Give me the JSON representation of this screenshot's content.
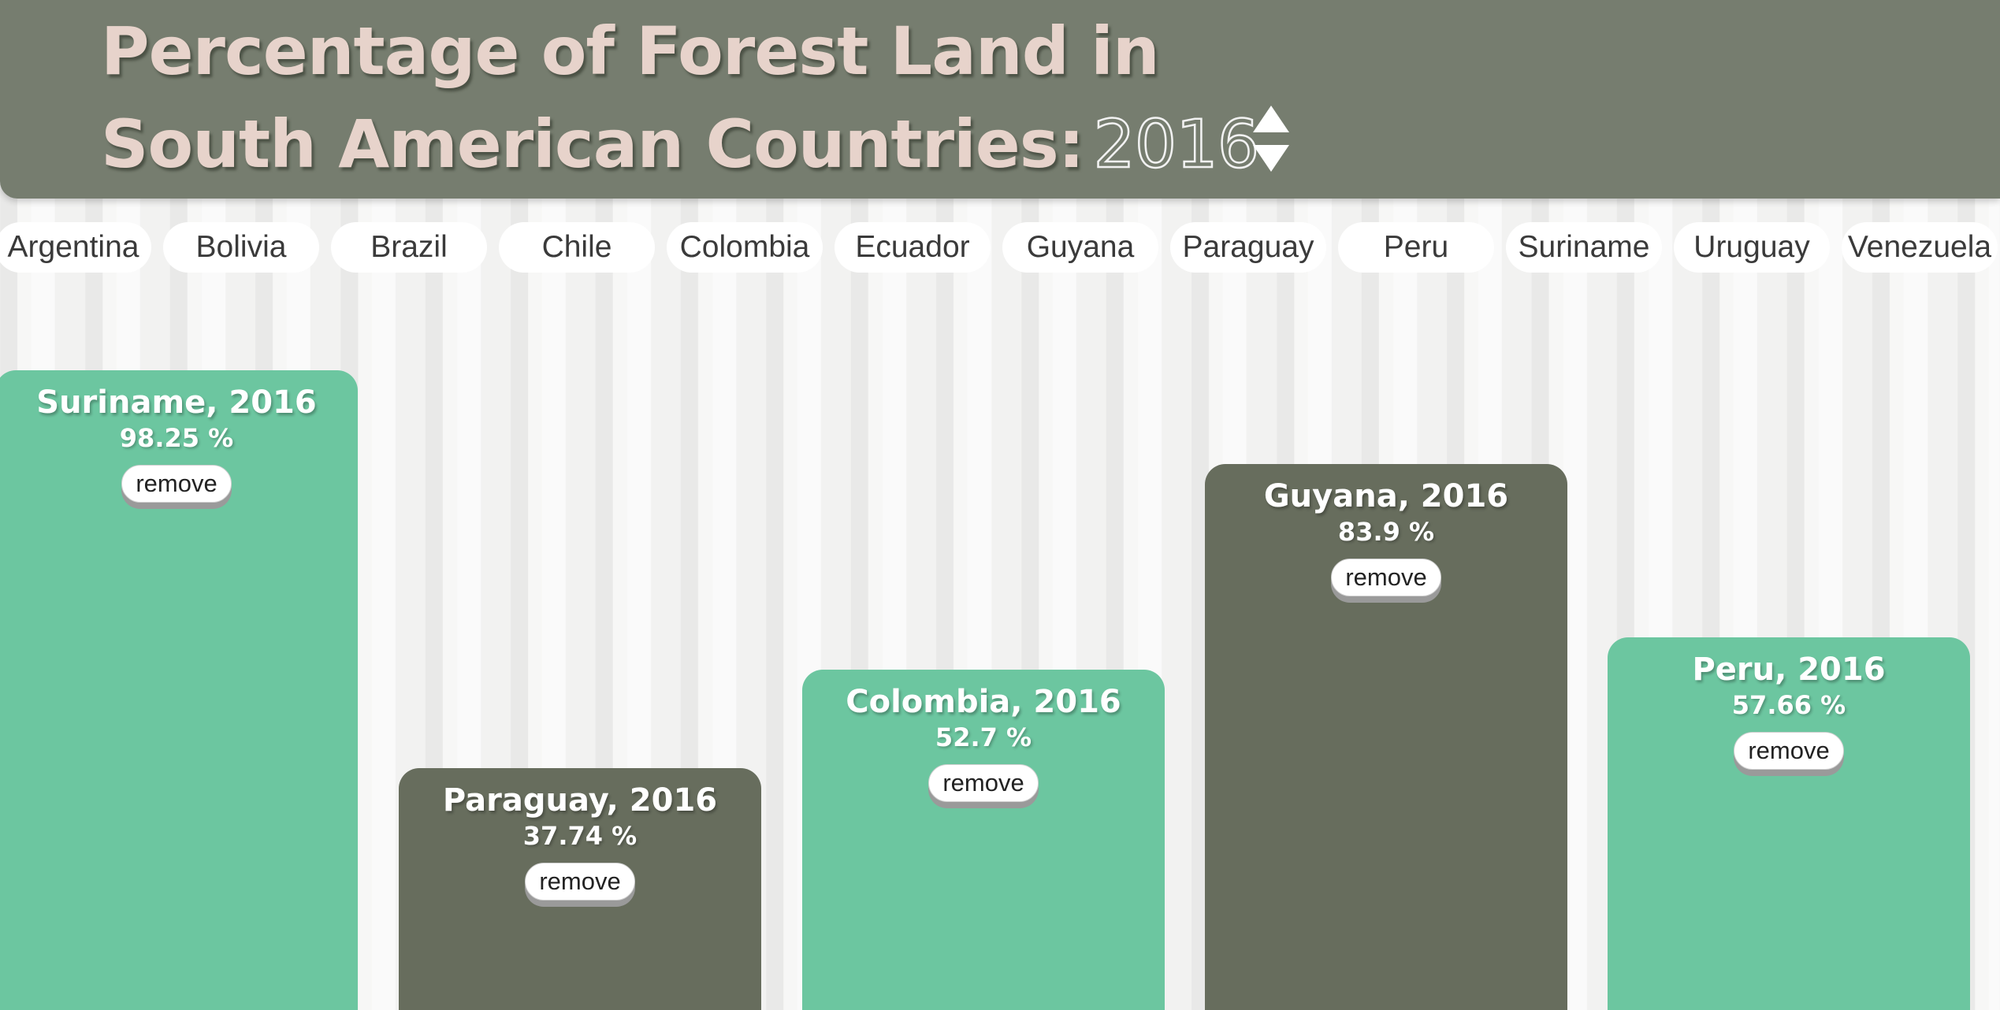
{
  "header": {
    "title_line1": "Percentage of Forest Land in",
    "title_line2": "South American Countries:",
    "year": "2016"
  },
  "stepper": {
    "up_icon": "triangle-up-icon",
    "down_icon": "triangle-down-icon"
  },
  "countries": [
    "Argentina",
    "Bolivia",
    "Brazil",
    "Chile",
    "Colombia",
    "Ecuador",
    "Guyana",
    "Paraguay",
    "Peru",
    "Suriname",
    "Uruguay",
    "Venezuela"
  ],
  "remove_label": "remove",
  "colors": {
    "header_bg": "#767d6f",
    "title_text": "#e7d3cb",
    "bar_green": "#6cc6a0",
    "bar_dark": "#676d5d"
  },
  "chart_data": {
    "type": "bar",
    "unit": "%",
    "categories": [
      "Suriname",
      "Paraguay",
      "Colombia",
      "Guyana",
      "Peru"
    ],
    "labels": [
      "Suriname, 2016",
      "Paraguay, 2016",
      "Colombia, 2016",
      "Guyana, 2016",
      "Peru, 2016"
    ],
    "value_labels": [
      "98.25 %",
      "37.74 %",
      "52.7 %",
      "83.9 %",
      "57.66 %"
    ],
    "values": [
      98.25,
      37.74,
      52.7,
      83.9,
      57.66
    ],
    "bar_colors": [
      "#6cc6a0",
      "#676d5d",
      "#6cc6a0",
      "#676d5d",
      "#6cc6a0"
    ],
    "year": "2016"
  }
}
